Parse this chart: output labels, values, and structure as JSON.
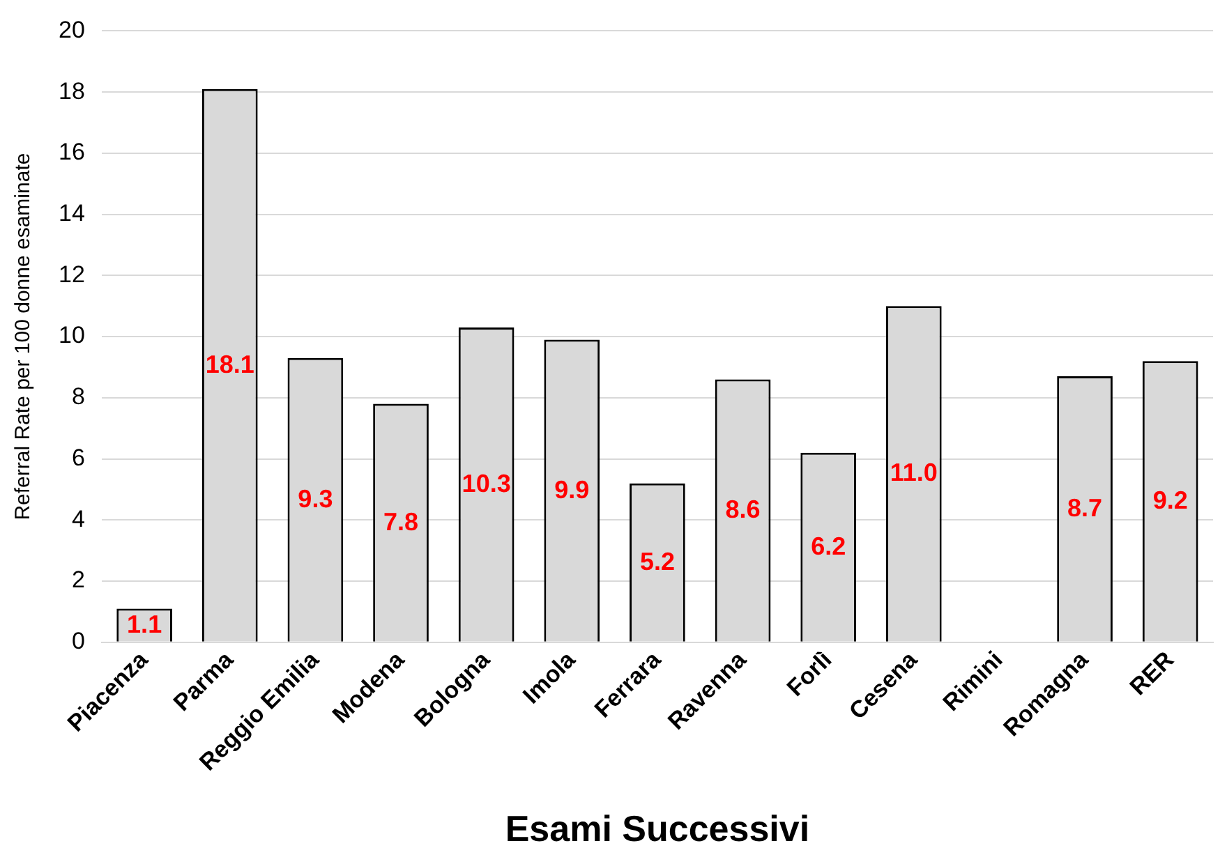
{
  "chart_data": {
    "type": "bar",
    "xlabel": "Esami Successivi",
    "ylabel": "Referral Rate per 100 donne esaminate",
    "categories": [
      "Piacenza",
      "Parma",
      "Reggio Emilia",
      "Modena",
      "Bologna",
      "Imola",
      "Ferrara",
      "Ravenna",
      "Forlì",
      "Cesena",
      "Rimini",
      "Romagna",
      "RER"
    ],
    "values": [
      1.1,
      18.1,
      9.3,
      7.8,
      10.3,
      9.9,
      5.2,
      8.6,
      6.2,
      11.0,
      null,
      8.7,
      9.2
    ],
    "value_labels": [
      "1.1",
      "18.1",
      "9.3",
      "7.8",
      "10.3",
      "9.9",
      "5.2",
      "8.6",
      "6.2",
      "11.0",
      null,
      "8.7",
      "9.2"
    ],
    "color": "#d9d9d9",
    "ylim": [
      0,
      20
    ],
    "yticks": [
      0,
      2,
      4,
      6,
      8,
      10,
      12,
      14,
      16,
      18,
      20
    ],
    "grid": "y"
  }
}
